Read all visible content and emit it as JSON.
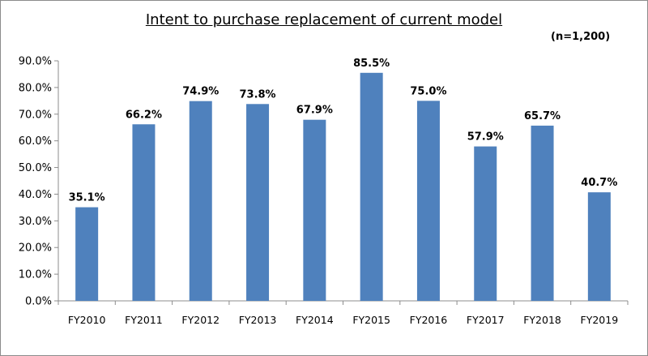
{
  "chart_data": {
    "type": "bar",
    "title": "Intent to purchase replacement of current model",
    "note": "(n=1,200)",
    "xlabel": "",
    "ylabel": "",
    "categories": [
      "FY2010",
      "FY2011",
      "FY2012",
      "FY2013",
      "FY2014",
      "FY2015",
      "FY2016",
      "FY2017",
      "FY2018",
      "FY2019"
    ],
    "values": [
      35.1,
      66.2,
      74.9,
      73.8,
      67.9,
      85.5,
      75.0,
      57.9,
      65.7,
      40.7
    ],
    "value_labels": [
      "35.1%",
      "66.2%",
      "74.9%",
      "73.8%",
      "67.9%",
      "85.5%",
      "75.0%",
      "57.9%",
      "65.7%",
      "40.7%"
    ],
    "ylim": [
      0,
      90
    ],
    "ytick_values": [
      0,
      10,
      20,
      30,
      40,
      50,
      60,
      70,
      80,
      90
    ],
    "ytick_labels": [
      "0.0%",
      "10.0%",
      "20.0%",
      "30.0%",
      "40.0%",
      "50.0%",
      "60.0%",
      "70.0%",
      "80.0%",
      "90.0%"
    ],
    "grid": false,
    "legend": "none",
    "bar_color": "#4f81bd",
    "axis_color": "#8c8c8c"
  }
}
